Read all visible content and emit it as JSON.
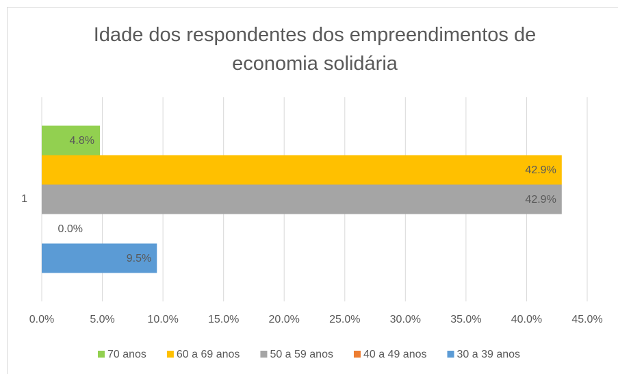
{
  "chart_data": {
    "type": "bar",
    "orientation": "horizontal",
    "title": "Idade dos respondentes dos empreendimentos de economia solidária",
    "categories": [
      "1"
    ],
    "series": [
      {
        "name": "70 anos",
        "color": "#92d050",
        "values": [
          4.8
        ],
        "value_labels": [
          "4.8%"
        ]
      },
      {
        "name": "60 a 69 anos",
        "color": "#ffc000",
        "values": [
          42.9
        ],
        "value_labels": [
          "42.9%"
        ]
      },
      {
        "name": "50 a 59 anos",
        "color": "#a5a5a5",
        "values": [
          42.9
        ],
        "value_labels": [
          "42.9%"
        ]
      },
      {
        "name": "40 a 49 anos",
        "color": "#ed7d31",
        "values": [
          0
        ],
        "value_labels": [
          "0.0%"
        ]
      },
      {
        "name": "30 a 39 anos",
        "color": "#5b9bd5",
        "values": [
          9.5
        ],
        "value_labels": [
          "9.5%"
        ]
      }
    ],
    "xlim": [
      0,
      45
    ],
    "xticks": [
      {
        "value": 0,
        "label": "0.0%"
      },
      {
        "value": 5,
        "label": "5.0%"
      },
      {
        "value": 10,
        "label": "10.0%"
      },
      {
        "value": 15,
        "label": "15.0%"
      },
      {
        "value": 20,
        "label": "20.0%"
      },
      {
        "value": 25,
        "label": "25.0%"
      },
      {
        "value": 30,
        "label": "30.0%"
      },
      {
        "value": 35,
        "label": "35.0%"
      },
      {
        "value": 40,
        "label": "40.0%"
      },
      {
        "value": 45,
        "label": "45.0%"
      }
    ],
    "grid": true,
    "legend": "bottom"
  }
}
